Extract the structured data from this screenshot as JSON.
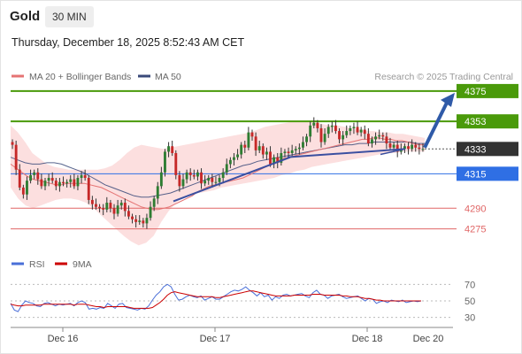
{
  "header": {
    "title": "Gold",
    "timeframe": "30 MIN",
    "datetime": "Thursday, December 18, 2025 8:52:43 AM CET"
  },
  "legend": {
    "bb_label": "MA 20 + Bollinger Bands",
    "ma50_label": "MA 50",
    "credit": "Research © 2025 Trading Central"
  },
  "colors": {
    "resistance": "#4a9a0a",
    "current": "#333333",
    "pivot": "#2f6fe4",
    "support": "#e06666",
    "bollinger_fill": "#fbd9d9",
    "ma20": "#e57373",
    "ma50": "#3a4a7a",
    "rsi": "#4a6fd8",
    "rsi_ma": "#cc0000",
    "bull_candle": "#2e7d32",
    "bear_candle": "#c62828",
    "arrow": "#2f5aa8"
  },
  "chart_data": [
    {
      "type": "candlestick",
      "title": "Gold 30 MIN",
      "y_range": [
        4260,
        4382
      ],
      "x_labels": [
        "Dec 16",
        "Dec 17",
        "Dec 18",
        "Dec 20"
      ],
      "levels": [
        {
          "value": 4375,
          "label": "4375",
          "kind": "resistance"
        },
        {
          "value": 4353,
          "label": "4353",
          "kind": "resistance"
        },
        {
          "value": 4333,
          "label": "4333",
          "kind": "current"
        },
        {
          "value": 4315,
          "label": "4315",
          "kind": "pivot"
        },
        {
          "value": 4290,
          "label": "4290",
          "kind": "support"
        },
        {
          "value": 4275,
          "label": "4275",
          "kind": "support"
        }
      ],
      "close_series": [
        4336,
        4318,
        4305,
        4300,
        4310,
        4314,
        4316,
        4311,
        4306,
        4310,
        4312,
        4310,
        4306,
        4309,
        4308,
        4309,
        4311,
        4306,
        4312,
        4314,
        4312,
        4296,
        4293,
        4291,
        4290,
        4289,
        4294,
        4290,
        4286,
        4292,
        4294,
        4288,
        4284,
        4282,
        4280,
        4281,
        4279,
        4283,
        4291,
        4297,
        4306,
        4316,
        4331,
        4335,
        4330,
        4314,
        4306,
        4311,
        4316,
        4314,
        4313,
        4316,
        4308,
        4310,
        4312,
        4309,
        4309,
        4312,
        4316,
        4322,
        4325,
        4327,
        4329,
        4336,
        4334,
        4345,
        4342,
        4332,
        4335,
        4329,
        4331,
        4322,
        4327,
        4323,
        4330,
        4331,
        4330,
        4332,
        4333,
        4334,
        4338,
        4342,
        4350,
        4352,
        4348,
        4338,
        4344,
        4349,
        4350,
        4346,
        4340,
        4343,
        4346,
        4348,
        4349,
        4345,
        4347,
        4344,
        4337,
        4340,
        4342,
        4343,
        4342,
        4337,
        4334,
        4336,
        4331,
        4333,
        4335,
        4333,
        4336,
        4334,
        4333,
        4333
      ],
      "ma20": [
        4322,
        4319,
        4316,
        4313,
        4311,
        4310,
        4309,
        4308,
        4307,
        4307,
        4308,
        4308,
        4308,
        4308,
        4307,
        4306,
        4305,
        4303,
        4301,
        4299,
        4297,
        4295,
        4293,
        4291,
        4290,
        4289,
        4289,
        4290,
        4291,
        4293,
        4295,
        4297,
        4299,
        4302,
        4304,
        4306,
        4307,
        4308,
        4309,
        4310,
        4311,
        4312,
        4314,
        4316,
        4318,
        4320,
        4322,
        4324,
        4326,
        4327,
        4328,
        4329,
        4330,
        4331,
        4332,
        4333,
        4334,
        4335,
        4336,
        4337,
        4338,
        4339,
        4340,
        4340,
        4341,
        4341,
        4340,
        4340,
        4339,
        4339,
        4338,
        4337,
        4336,
        4336
      ],
      "ma50": [
        4327,
        4325,
        4323,
        4322,
        4322,
        4323,
        4323,
        4322,
        4320,
        4318,
        4316,
        4313,
        4310,
        4307,
        4305,
        4303,
        4301,
        4299,
        4298,
        4298,
        4299,
        4300,
        4301,
        4303,
        4305,
        4307,
        4309,
        4311,
        4313,
        4315,
        4317,
        4319,
        4321,
        4322,
        4324,
        4325,
        4326,
        4327,
        4328,
        4329,
        4330,
        4331,
        4332,
        4333,
        4334,
        4335,
        4336,
        4336,
        4337,
        4337,
        4338,
        4338,
        4338,
        4338,
        4338,
        4338,
        4337,
        4337
      ],
      "bb_upper": [
        4350,
        4345,
        4338,
        4330,
        4326,
        4322,
        4320,
        4319,
        4318,
        4318,
        4318,
        4318,
        4318,
        4319,
        4321,
        4325,
        4330,
        4334,
        4336,
        4335,
        4334,
        4333,
        4334,
        4335,
        4336,
        4337,
        4338,
        4339,
        4340,
        4341,
        4342,
        4343,
        4344,
        4345,
        4347,
        4349,
        4350,
        4351,
        4352,
        4353,
        4353,
        4353,
        4352,
        4351,
        4350,
        4350,
        4349,
        4348,
        4347,
        4346,
        4346,
        4345,
        4345,
        4344,
        4344,
        4343,
        4342,
        4341
      ],
      "bb_lower": [
        4305,
        4297,
        4292,
        4290,
        4292,
        4294,
        4296,
        4297,
        4297,
        4296,
        4294,
        4290,
        4285,
        4280,
        4275,
        4270,
        4266,
        4263,
        4265,
        4270,
        4280,
        4288,
        4294,
        4298,
        4300,
        4301,
        4302,
        4303,
        4305,
        4306,
        4307,
        4308,
        4309,
        4310,
        4311,
        4312,
        4314,
        4315,
        4317,
        4318,
        4320,
        4321,
        4322,
        4323,
        4324,
        4325,
        4326,
        4327,
        4328,
        4329,
        4330,
        4330,
        4331,
        4331,
        4331,
        4331
      ],
      "trendlines": [
        {
          "from": [
            4295,
            0.405
          ],
          "to": [
            4327,
            0.78
          ]
        },
        {
          "from": [
            4327,
            0.78
          ],
          "to": [
            4333,
            0.9
          ]
        },
        {
          "from": [
            4329,
            0.83
          ],
          "to": [
            4334,
            0.92
          ]
        }
      ]
    },
    {
      "type": "line",
      "title": "RSI",
      "series": [
        {
          "name": "RSI",
          "role": "rsi"
        },
        {
          "name": "9MA",
          "role": "rsi_ma"
        }
      ],
      "y_ticks": [
        70,
        50,
        30
      ],
      "y_range": [
        20,
        80
      ],
      "rsi_values": [
        47,
        39,
        37,
        45,
        50,
        48,
        47,
        44,
        43,
        47,
        48,
        46,
        44,
        46,
        45,
        46,
        47,
        44,
        48,
        50,
        48,
        40,
        41,
        40,
        42,
        41,
        47,
        44,
        41,
        46,
        47,
        42,
        41,
        40,
        39,
        41,
        40,
        44,
        51,
        57,
        61,
        67,
        70,
        67,
        58,
        51,
        52,
        55,
        57,
        55,
        54,
        56,
        51,
        53,
        55,
        52,
        52,
        55,
        58,
        61,
        63,
        62,
        64,
        67,
        63,
        60,
        56,
        60,
        55,
        57,
        51,
        55,
        53,
        57,
        58,
        56,
        57,
        58,
        59,
        56,
        54,
        60,
        63,
        58,
        57,
        53,
        56,
        57,
        58,
        55,
        53,
        54,
        55,
        56,
        53,
        50,
        53,
        52,
        47,
        49,
        50,
        48,
        51,
        50,
        49,
        51,
        48,
        49,
        50,
        49,
        50
      ],
      "rsi_ma_values": [
        46,
        45,
        44,
        44,
        45,
        45,
        45,
        45,
        45,
        46,
        46,
        46,
        46,
        46,
        46,
        46,
        46,
        45,
        46,
        46,
        46,
        45,
        44,
        43,
        43,
        42,
        43,
        43,
        43,
        43,
        43,
        43,
        42,
        41,
        41,
        41,
        41,
        41,
        42,
        45,
        48,
        52,
        57,
        60,
        61,
        60,
        59,
        58,
        57,
        56,
        55,
        55,
        55,
        55,
        55,
        54,
        54,
        55,
        56,
        57,
        58,
        59,
        60,
        61,
        62,
        62,
        61,
        60,
        59,
        58,
        57,
        56,
        56,
        56,
        56,
        56,
        57,
        57,
        57,
        57,
        57,
        58,
        58,
        58,
        57,
        57,
        57,
        57,
        57,
        56,
        56,
        55,
        55,
        55,
        54,
        53,
        53,
        52,
        51,
        51,
        50,
        50,
        50,
        50,
        50,
        50,
        50,
        50,
        50,
        50,
        50
      ]
    }
  ]
}
